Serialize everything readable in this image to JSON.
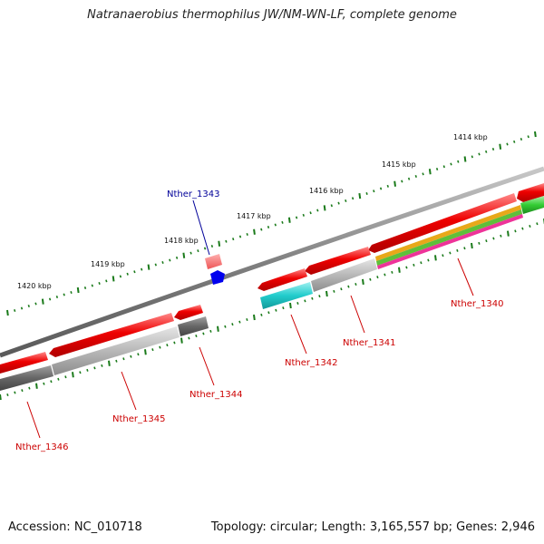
{
  "title": "Natranaerobius thermophilus JW/NM-WN-LF, complete genome",
  "footer": {
    "accession": "Accession: NC_010718",
    "topology": "Topology: circular; Length: 3,165,557 bp; Genes: 2,946"
  },
  "kbp_labels": [
    "1414 kbp",
    "1415 kbp",
    "1416 kbp",
    "1417 kbp",
    "1418 kbp",
    "1419 kbp",
    "1420 kbp"
  ],
  "genes": [
    {
      "label": "Nther_1340",
      "color": "#cc0000"
    },
    {
      "label": "Nther_1341",
      "color": "#cc0000"
    },
    {
      "label": "Nther_1342",
      "color": "#cc0000"
    },
    {
      "label": "Nther_1343",
      "color": "#000099"
    },
    {
      "label": "Nther_1344",
      "color": "#cc0000"
    },
    {
      "label": "Nther_1345",
      "color": "#cc0000"
    },
    {
      "label": "Nther_1346",
      "color": "#cc0000"
    }
  ],
  "colors": {
    "backbone": "#808080",
    "gene_red": "#ee0000",
    "cds_grey": "#b4b4b4",
    "cds_dark": "#666666",
    "cyan": "#22cccc",
    "green": "#33cc33",
    "tick_green": "#1a7a1a",
    "blue_gene": "#0000ee"
  }
}
